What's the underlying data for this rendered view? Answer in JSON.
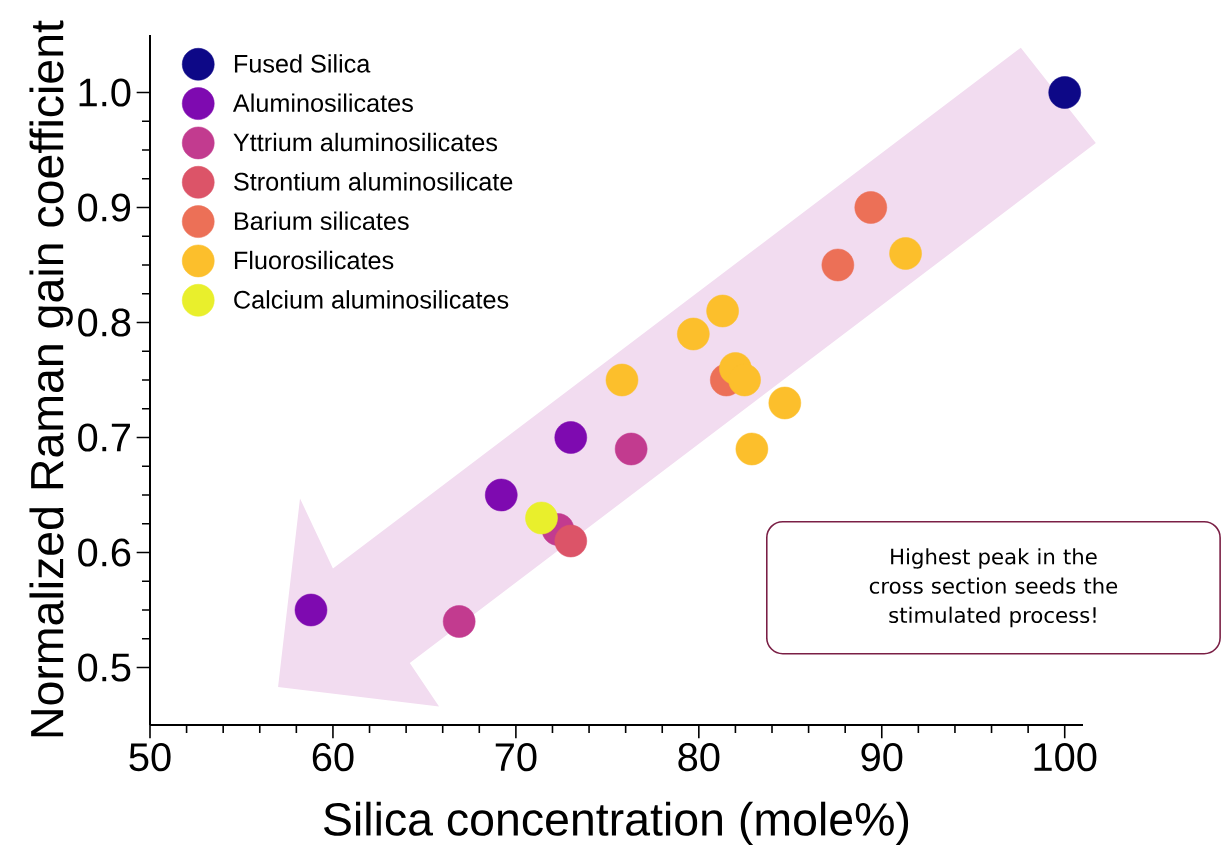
{
  "chart_data": {
    "type": "scatter",
    "xlabel": "Silica concentration (mole%)",
    "ylabel": "Normalized Raman gain coefficient",
    "xlim": [
      50,
      101
    ],
    "ylim": [
      0.45,
      1.05
    ],
    "xticks": [
      50,
      60,
      70,
      80,
      90,
      100
    ],
    "yticks": [
      0.5,
      0.6,
      0.7,
      0.8,
      0.9,
      {
        "value": 1.0,
        "label": "1.0"
      }
    ],
    "legend": "top left",
    "series": [
      {
        "name": "Fused Silica",
        "color": "#0d0887",
        "x": [
          100
        ],
        "values": [
          1.0
        ]
      },
      {
        "name": "Aluminosilicates",
        "color": "#7e0ab0",
        "x": [
          58.8,
          69.2,
          73.0
        ],
        "values": [
          0.55,
          0.65,
          0.7
        ]
      },
      {
        "name": "Yttrium aluminosilicates",
        "color": "#c23b8f",
        "x": [
          66.9,
          72.3,
          76.3
        ],
        "values": [
          0.54,
          0.62,
          0.69
        ]
      },
      {
        "name": "Strontium aluminosilicate",
        "color": "#dc5468",
        "x": [
          73.0
        ],
        "values": [
          0.61
        ]
      },
      {
        "name": "Barium silicates",
        "color": "#ec7057",
        "x": [
          89.4,
          87.6,
          81.5
        ],
        "values": [
          0.9,
          0.85,
          0.75
        ]
      },
      {
        "name": "Fluorosilicates",
        "color": "#fcbf2c",
        "x": [
          91.3,
          81.3,
          79.7,
          75.8,
          82.0,
          82.5,
          84.7,
          82.9
        ],
        "values": [
          0.86,
          0.81,
          0.79,
          0.75,
          0.76,
          0.75,
          0.73,
          0.69
        ]
      },
      {
        "name": "Calcium aluminosilicates",
        "color": "#e9ef2c",
        "x": [
          71.4
        ],
        "values": [
          0.63
        ]
      }
    ],
    "annotations": [
      "Highest peak in the cross section seeds the stimulated process!"
    ]
  }
}
